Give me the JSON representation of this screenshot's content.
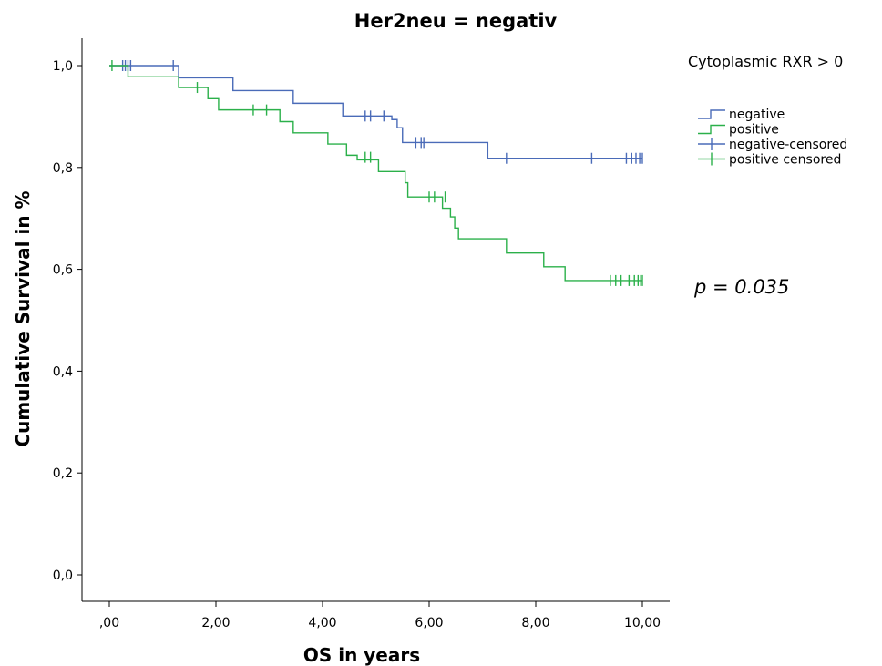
{
  "chart_data": {
    "type": "line",
    "subtype": "kaplan-meier-step",
    "title": "Her2neu = negativ",
    "xlabel": "OS in years",
    "ylabel": "Cumulative Survival in %",
    "xlim": [
      -0.5,
      10.5
    ],
    "ylim": [
      -0.05,
      1.05
    ],
    "x_ticks": [
      0,
      2,
      4,
      6,
      8,
      10
    ],
    "x_tick_labels": [
      ",00",
      "2,00",
      "4,00",
      "6,00",
      "8,00",
      "10,00"
    ],
    "y_ticks": [
      0,
      0.2,
      0.4,
      0.6,
      0.8,
      1.0
    ],
    "y_tick_labels": [
      "0,0",
      "0,2",
      "0,4",
      "0,6",
      "0,8",
      "1,0"
    ],
    "grid": false,
    "legend": {
      "title": "Cytoplasmic RXR > 0",
      "placement": "right",
      "entries": [
        "negative",
        "positive",
        "negative-censored",
        "positive censored"
      ]
    },
    "annotation": "p = 0.035",
    "series": [
      {
        "name": "negative",
        "color": "#4a6bb8",
        "steps": [
          [
            0,
            1.0
          ],
          [
            1.3,
            0.976
          ],
          [
            2.32,
            0.951
          ],
          [
            3.45,
            0.926
          ],
          [
            4.38,
            0.901
          ],
          [
            5.3,
            0.894
          ],
          [
            5.4,
            0.878
          ],
          [
            5.5,
            0.849
          ],
          [
            7.1,
            0.818
          ],
          [
            10.0,
            0.818
          ]
        ],
        "censored": [
          [
            0.25,
            1.0
          ],
          [
            0.3,
            1.0
          ],
          [
            0.35,
            1.0
          ],
          [
            0.4,
            1.0
          ],
          [
            1.2,
            1.0
          ],
          [
            4.8,
            0.901
          ],
          [
            4.9,
            0.901
          ],
          [
            5.15,
            0.901
          ],
          [
            5.75,
            0.849
          ],
          [
            5.85,
            0.849
          ],
          [
            5.9,
            0.849
          ],
          [
            7.45,
            0.818
          ],
          [
            9.05,
            0.818
          ],
          [
            9.7,
            0.818
          ],
          [
            9.8,
            0.818
          ],
          [
            9.88,
            0.818
          ],
          [
            9.95,
            0.818
          ],
          [
            10.0,
            0.818
          ]
        ]
      },
      {
        "name": "positive",
        "color": "#2bb04a",
        "steps": [
          [
            0,
            1.0
          ],
          [
            0.35,
            0.978
          ],
          [
            1.3,
            0.957
          ],
          [
            1.85,
            0.935
          ],
          [
            2.05,
            0.913
          ],
          [
            3.2,
            0.89
          ],
          [
            3.45,
            0.868
          ],
          [
            4.1,
            0.846
          ],
          [
            4.45,
            0.824
          ],
          [
            4.65,
            0.815
          ],
          [
            5.05,
            0.792
          ],
          [
            5.55,
            0.77
          ],
          [
            5.6,
            0.742
          ],
          [
            6.25,
            0.72
          ],
          [
            6.4,
            0.703
          ],
          [
            6.48,
            0.681
          ],
          [
            6.55,
            0.66
          ],
          [
            7.45,
            0.632
          ],
          [
            8.15,
            0.605
          ],
          [
            8.55,
            0.578
          ],
          [
            10.0,
            0.578
          ]
        ],
        "censored": [
          [
            0.05,
            1.0
          ],
          [
            1.65,
            0.957
          ],
          [
            2.7,
            0.913
          ],
          [
            2.95,
            0.913
          ],
          [
            4.8,
            0.82
          ],
          [
            4.9,
            0.82
          ],
          [
            6.0,
            0.742
          ],
          [
            6.1,
            0.742
          ],
          [
            6.3,
            0.742
          ],
          [
            9.4,
            0.578
          ],
          [
            9.5,
            0.578
          ],
          [
            9.6,
            0.578
          ],
          [
            9.75,
            0.578
          ],
          [
            9.85,
            0.578
          ],
          [
            9.92,
            0.578
          ],
          [
            9.97,
            0.578
          ],
          [
            10.0,
            0.578
          ]
        ]
      }
    ]
  }
}
